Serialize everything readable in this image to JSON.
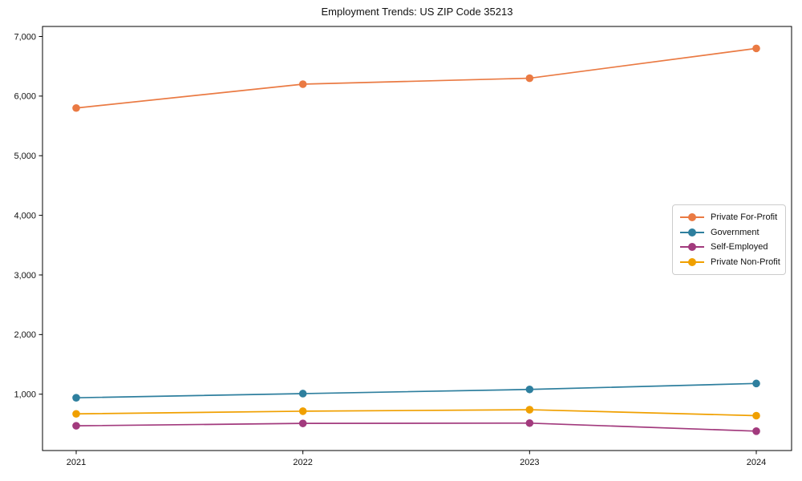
{
  "title": "Employment Trends: US ZIP Code 35213",
  "chart_data": {
    "type": "line",
    "title": "Employment Trends: US ZIP Code 35213",
    "xlabel": "",
    "ylabel": "",
    "categories": [
      "2021",
      "2022",
      "2023",
      "2024"
    ],
    "series": [
      {
        "name": "Private For-Profit",
        "color": "#ea7a43",
        "values": [
          5800,
          6200,
          6300,
          6800
        ]
      },
      {
        "name": "Government",
        "color": "#2e7f9e",
        "values": [
          940,
          1010,
          1080,
          1180
        ]
      },
      {
        "name": "Self-Employed",
        "color": "#a23a7d",
        "values": [
          470,
          510,
          515,
          380
        ]
      },
      {
        "name": "Private Non-Profit",
        "color": "#f0a000",
        "values": [
          670,
          715,
          740,
          640
        ]
      }
    ],
    "yaxis": {
      "ticks": [
        1000,
        2000,
        3000,
        4000,
        5000,
        6000,
        7000
      ],
      "tick_labels": [
        "1,000",
        "2,000",
        "3,000",
        "4,000",
        "5,000",
        "6,000",
        "7,000"
      ],
      "ylim": [
        55,
        7168
      ]
    },
    "grid": false,
    "legend_position": "center right"
  }
}
